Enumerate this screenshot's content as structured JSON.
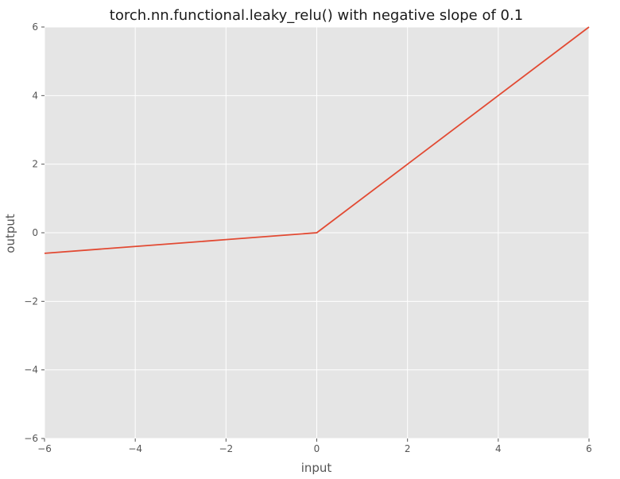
{
  "chart_data": {
    "type": "line",
    "title": "torch.nn.functional.leaky_relu() with negative slope of 0.1",
    "xlabel": "input",
    "ylabel": "output",
    "xlim": [
      -6,
      6
    ],
    "ylim": [
      -6,
      6
    ],
    "xticks": [
      -6,
      -4,
      -2,
      0,
      2,
      4,
      6
    ],
    "yticks": [
      -6,
      -4,
      -2,
      0,
      2,
      4,
      6
    ],
    "xtick_labels": [
      "−6",
      "−4",
      "−2",
      "0",
      "2",
      "4",
      "6"
    ],
    "ytick_labels": [
      "−6",
      "−4",
      "−2",
      "0",
      "2",
      "4",
      "6"
    ],
    "grid": true,
    "colors": {
      "background": "#e5e5e5",
      "grid": "#ffffff",
      "line": "#e24a33"
    },
    "series": [
      {
        "x": [
          -6,
          -4,
          -2,
          0,
          2,
          4,
          6
        ],
        "y": [
          -0.6,
          -0.4,
          -0.2,
          0,
          2,
          4,
          6
        ]
      }
    ]
  }
}
